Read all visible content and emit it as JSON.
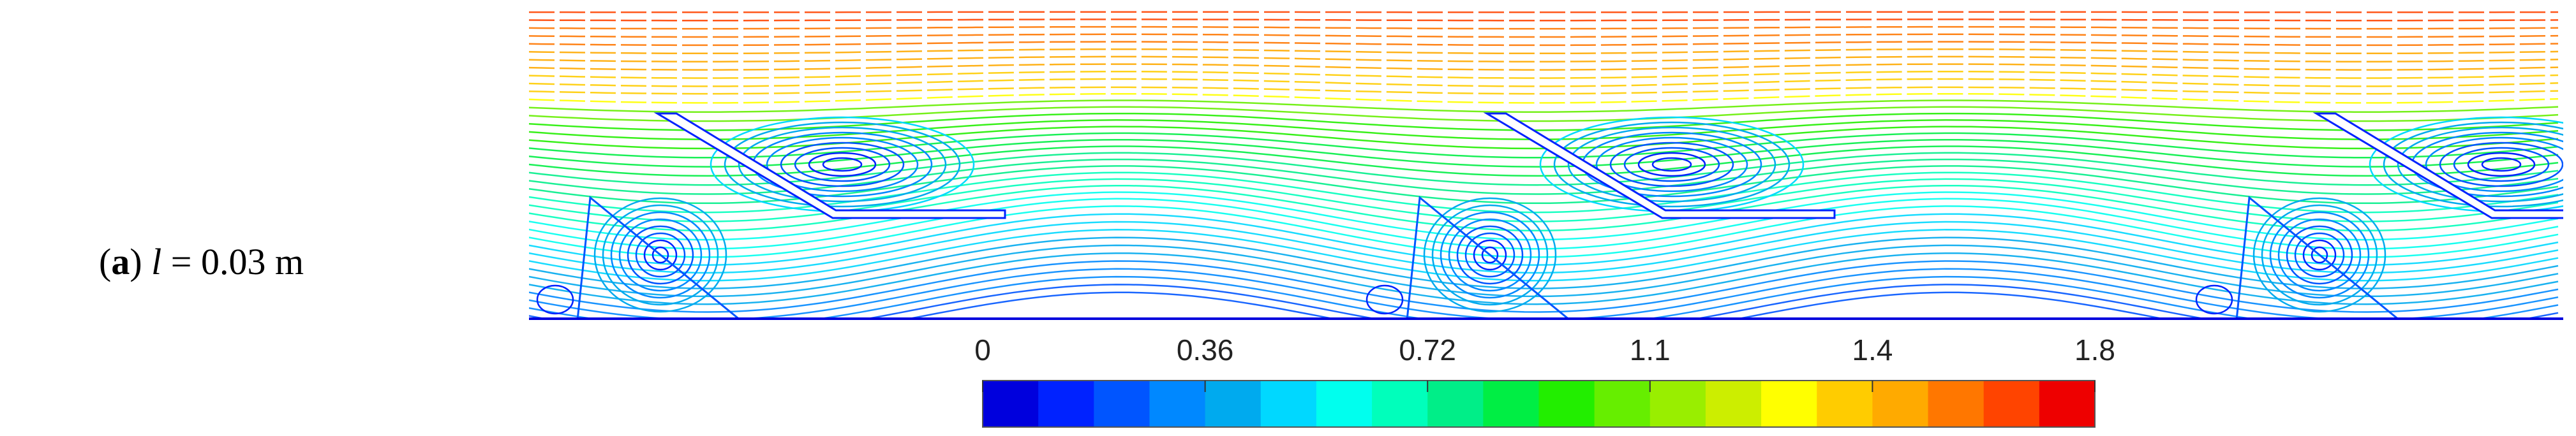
{
  "chart_data": {
    "type": "colorbar",
    "label_parts": [
      {
        "text": "(",
        "style": "normal"
      },
      {
        "text": "a",
        "style": "bold"
      },
      {
        "text": ") ",
        "style": "normal"
      },
      {
        "text": "l",
        "style": "italic"
      },
      {
        "text": " = 0.03 m",
        "style": "normal"
      }
    ],
    "xlim": [
      0,
      1.8
    ],
    "xticks": [
      0,
      0.36,
      0.72,
      {
        "value": 1.08,
        "label": "1.1"
      },
      {
        "value": 1.44,
        "label": "1.4"
      },
      1.8
    ],
    "colors": [
      "#0000dd",
      "#0022ff",
      "#0055ff",
      "#0088ff",
      "#00aaee",
      "#00d8ff",
      "#00ffee",
      "#00ffbb",
      "#00ee88",
      "#00ee44",
      "#22ee00",
      "#66ee00",
      "#99ee00",
      "#ccee00",
      "#ffff00",
      "#ffcc00",
      "#ffaa00",
      "#ff7700",
      "#ff4400",
      "#ee0000"
    ]
  }
}
